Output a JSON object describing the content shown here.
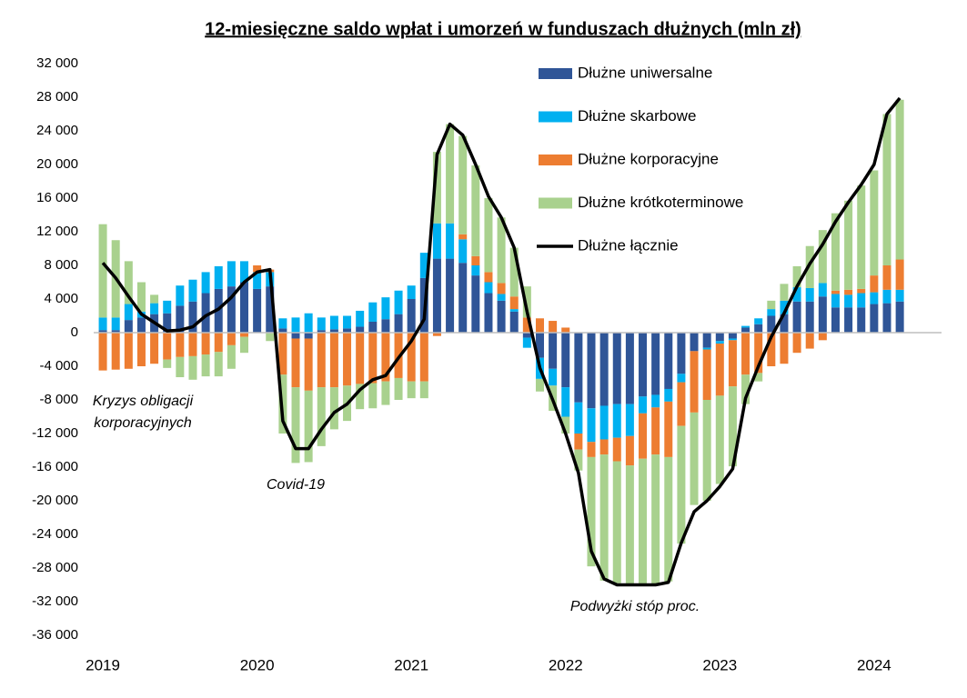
{
  "chart_data": {
    "type": "bar",
    "stacked": true,
    "title": "12-miesięczne saldo wpłat i umorzeń w funduszach dłużnych (mln zł)",
    "categories": [
      "2019",
      null,
      null,
      null,
      null,
      null,
      null,
      null,
      null,
      null,
      null,
      null,
      "2020",
      null,
      null,
      null,
      null,
      null,
      null,
      null,
      null,
      null,
      null,
      null,
      "2021",
      null,
      null,
      null,
      null,
      null,
      null,
      null,
      null,
      null,
      null,
      null,
      "2022",
      null,
      null,
      null,
      null,
      null,
      null,
      null,
      null,
      null,
      null,
      null,
      "2023",
      null,
      null,
      null,
      null,
      null,
      null,
      null,
      null,
      null,
      null,
      null,
      "2024",
      null,
      null
    ],
    "series": [
      {
        "name": "Dłużne uniwersalne",
        "type": "bar",
        "color": "#2f5597",
        "values": [
          300,
          300,
          1500,
          1800,
          2200,
          2300,
          3200,
          3700,
          4700,
          5200,
          5500,
          6000,
          5200,
          5500,
          500,
          -700,
          -700,
          300,
          400,
          500,
          700,
          1300,
          1600,
          2200,
          4000,
          6500,
          8800,
          8800,
          8300,
          6800,
          4700,
          3800,
          2500,
          -600,
          -3000,
          -4300,
          -6500,
          -8300,
          -9000,
          -8700,
          -8500,
          -8500,
          -7600,
          -7400,
          -6700,
          -4900,
          -2200,
          -1800,
          -1000,
          -700,
          600,
          1000,
          2000,
          2200,
          3700,
          3700,
          4300,
          3000,
          3000,
          3000,
          3400,
          3500,
          3700
        ]
      },
      {
        "name": "Dłużne skarbowe",
        "type": "bar",
        "color": "#00b0f0",
        "values": [
          1500,
          1500,
          1900,
          700,
          1300,
          1500,
          2400,
          2600,
          2500,
          2700,
          3000,
          2500,
          2000,
          1700,
          1200,
          1800,
          2300,
          1500,
          1600,
          1500,
          1900,
          2300,
          2600,
          2800,
          1600,
          3000,
          4200,
          4200,
          2800,
          1200,
          1300,
          800,
          300,
          -1200,
          -2500,
          -2000,
          -3500,
          -3700,
          -4000,
          -4000,
          -4000,
          -3800,
          -2000,
          -1500,
          -1500,
          -1000,
          0,
          -200,
          -300,
          -200,
          200,
          700,
          800,
          1600,
          1700,
          1600,
          1600,
          1600,
          1500,
          1700,
          1400,
          1600,
          1400
        ]
      },
      {
        "name": "Dłużne korporacyjne",
        "type": "bar",
        "color": "#ed7d31",
        "values": [
          -4500,
          -4400,
          -4300,
          -4000,
          -3700,
          -3200,
          -2900,
          -2800,
          -2600,
          -2300,
          -1500,
          -500,
          800,
          300,
          -5000,
          -5800,
          -6200,
          -6500,
          -6500,
          -6300,
          -6100,
          -6000,
          -5800,
          -5400,
          -5800,
          -5800,
          -400,
          0,
          600,
          1100,
          1200,
          1300,
          1500,
          1800,
          1700,
          1400,
          600,
          -1900,
          -1800,
          -1800,
          -2800,
          -3500,
          -5400,
          -5600,
          -6600,
          -5200,
          -7300,
          -6000,
          -6200,
          -5500,
          -5000,
          -4800,
          -4000,
          -3700,
          -2400,
          -1900,
          -900,
          400,
          600,
          500,
          2000,
          2900,
          3600
        ]
      },
      {
        "name": "Dłużne krótkoterminowe",
        "type": "bar",
        "color": "#a9d18e",
        "values": [
          11100,
          9200,
          5100,
          3500,
          1000,
          -1000,
          -2400,
          -2800,
          -2600,
          -2900,
          -2800,
          -1900,
          0,
          -1000,
          -7000,
          -9000,
          -8500,
          -7000,
          -5000,
          -4200,
          -3000,
          -3000,
          -2800,
          -2600,
          -2000,
          -2000,
          8500,
          11800,
          11700,
          10800,
          8800,
          7800,
          5800,
          3700,
          -1500,
          -3000,
          -2000,
          -2500,
          -13000,
          -15000,
          -14500,
          -14200,
          -15000,
          -15500,
          -14800,
          -14000,
          -11000,
          -12000,
          -10500,
          -9500,
          -3500,
          -1000,
          1000,
          2000,
          2500,
          5000,
          6300,
          9200,
          10600,
          12300,
          12500,
          18000,
          19000
        ]
      },
      {
        "name": "Dłużne łącznie",
        "type": "line",
        "color": "#000000",
        "values": [
          8300,
          6500,
          4300,
          2200,
          1200,
          200,
          300,
          700,
          2000,
          2800,
          4200,
          6000,
          7200,
          7500,
          -10500,
          -13800,
          -13800,
          -11500,
          -9500,
          -8500,
          -6800,
          -5600,
          -5100,
          -3000,
          -1000,
          1600,
          21200,
          24800,
          23500,
          20000,
          16200,
          13700,
          10100,
          2500,
          -4200,
          -8000,
          -12000,
          -16700,
          -26000,
          -29300,
          -30000,
          -30000,
          -30000,
          -30000,
          -29700,
          -25000,
          -21300,
          -20000,
          -18300,
          -16200,
          -7800,
          -4000,
          -500,
          2300,
          5500,
          8200,
          10500,
          13200,
          15500,
          17600,
          20000,
          26000,
          27900
        ]
      }
    ],
    "ylim": [
      -36000,
      32000
    ],
    "yticks": [
      {
        "value": -36000,
        "label": "-36 000"
      },
      {
        "value": -32000,
        "label": "-32 000"
      },
      {
        "value": -28000,
        "label": "-28 000"
      },
      {
        "value": -24000,
        "label": "-24 000"
      },
      {
        "value": -20000,
        "label": "-20 000"
      },
      {
        "value": -16000,
        "label": "-16 000"
      },
      {
        "value": -12000,
        "label": "-12 000"
      },
      {
        "value": -8000,
        "label": "-8 000"
      },
      {
        "value": -4000,
        "label": "-4 000"
      },
      0,
      {
        "value": 4000,
        "label": "4 000"
      },
      {
        "value": 8000,
        "label": "8 000"
      },
      {
        "value": 12000,
        "label": "12 000"
      },
      {
        "value": 16000,
        "label": "16 000"
      },
      {
        "value": 20000,
        "label": "20 000"
      },
      {
        "value": 24000,
        "label": "24 000"
      },
      {
        "value": 28000,
        "label": "28 000"
      },
      {
        "value": 32000,
        "label": "32 000"
      }
    ],
    "grid": false,
    "legend": "top-right",
    "annotations": [
      "Kryzys obligacji",
      "korporacyjnych",
      "Covid-19",
      "Podwyżki stóp proc."
    ]
  }
}
